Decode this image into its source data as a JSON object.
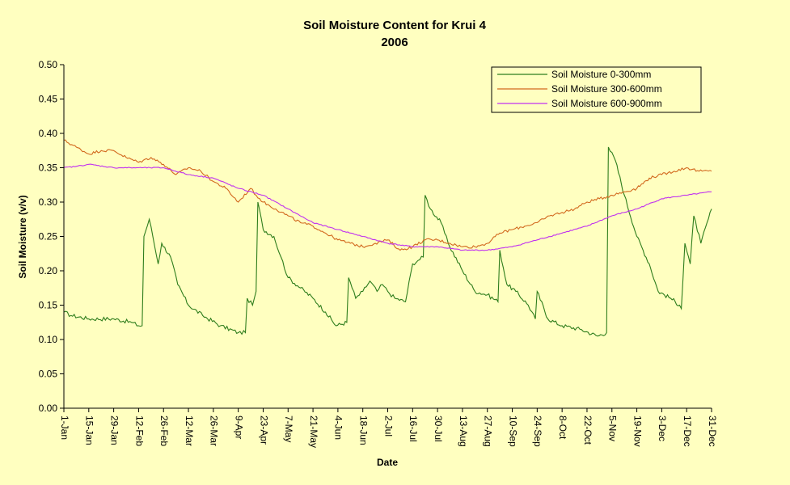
{
  "chart_data": {
    "type": "line",
    "title": "Soil Moisture Content for Krui 4",
    "subtitle": "2006",
    "xlabel": "Date",
    "ylabel": "Soil Moisture (v/v)",
    "ylim": [
      0,
      0.5
    ],
    "yticks": [
      "0.00",
      "0.05",
      "0.10",
      "0.15",
      "0.20",
      "0.25",
      "0.30",
      "0.35",
      "0.40",
      "0.45",
      "0.50"
    ],
    "xlim": [
      "2006-01-01",
      "2006-12-31"
    ],
    "xticks": [
      "1-Jan",
      "15-Jan",
      "29-Jan",
      "12-Feb",
      "26-Feb",
      "12-Mar",
      "26-Mar",
      "9-Apr",
      "23-Apr",
      "7-May",
      "21-May",
      "4-Jun",
      "18-Jun",
      "2-Jul",
      "16-Jul",
      "30-Jul",
      "13-Aug",
      "27-Aug",
      "10-Sep",
      "24-Sep",
      "8-Oct",
      "22-Oct",
      "5-Nov",
      "19-Nov",
      "3-Dec",
      "17-Dec",
      "31-Dec"
    ],
    "grid": false,
    "legend_position": "top-right",
    "plot_background": "#FFFFC0",
    "page_background": "#FFFFC0",
    "series": [
      {
        "name": "Soil Moisture 0-300mm",
        "color": "#2E7D1C",
        "x": [
          "2006-01-01",
          "2006-01-05",
          "2006-01-15",
          "2006-01-29",
          "2006-02-08",
          "2006-02-12",
          "2006-02-14",
          "2006-02-15",
          "2006-02-18",
          "2006-02-20",
          "2006-02-23",
          "2006-02-25",
          "2006-03-02",
          "2006-03-06",
          "2006-03-12",
          "2006-03-20",
          "2006-03-30",
          "2006-04-09",
          "2006-04-13",
          "2006-04-14",
          "2006-04-17",
          "2006-04-19",
          "2006-04-20",
          "2006-04-23",
          "2006-04-29",
          "2006-05-03",
          "2006-05-07",
          "2006-05-14",
          "2006-05-21",
          "2006-05-28",
          "2006-06-03",
          "2006-06-09",
          "2006-06-10",
          "2006-06-14",
          "2006-06-18",
          "2006-06-22",
          "2006-06-26",
          "2006-06-29",
          "2006-07-02",
          "2006-07-06",
          "2006-07-12",
          "2006-07-16",
          "2006-07-19",
          "2006-07-22",
          "2006-07-23",
          "2006-07-26",
          "2006-08-01",
          "2006-08-05",
          "2006-08-13",
          "2006-08-20",
          "2006-08-27",
          "2006-09-02",
          "2006-09-03",
          "2006-09-07",
          "2006-09-12",
          "2006-09-19",
          "2006-09-23",
          "2006-09-24",
          "2006-09-30",
          "2006-10-08",
          "2006-10-18",
          "2006-10-28",
          "2006-11-02",
          "2006-11-03",
          "2006-11-07",
          "2006-11-12",
          "2006-11-19",
          "2006-11-26",
          "2006-12-01",
          "2006-12-08",
          "2006-12-13",
          "2006-12-14",
          "2006-12-16",
          "2006-12-19",
          "2006-12-21",
          "2006-12-25",
          "2006-12-31"
        ],
        "values": [
          0.14,
          0.135,
          0.13,
          0.13,
          0.125,
          0.12,
          0.12,
          0.25,
          0.275,
          0.25,
          0.21,
          0.24,
          0.22,
          0.18,
          0.15,
          0.135,
          0.12,
          0.11,
          0.11,
          0.16,
          0.15,
          0.17,
          0.3,
          0.26,
          0.25,
          0.22,
          0.19,
          0.175,
          0.16,
          0.14,
          0.12,
          0.125,
          0.19,
          0.16,
          0.17,
          0.185,
          0.17,
          0.18,
          0.17,
          0.16,
          0.155,
          0.21,
          0.215,
          0.22,
          0.31,
          0.29,
          0.27,
          0.24,
          0.2,
          0.17,
          0.165,
          0.155,
          0.23,
          0.18,
          0.17,
          0.15,
          0.13,
          0.17,
          0.13,
          0.12,
          0.115,
          0.105,
          0.11,
          0.38,
          0.36,
          0.31,
          0.25,
          0.21,
          0.17,
          0.16,
          0.15,
          0.145,
          0.24,
          0.21,
          0.28,
          0.24,
          0.29
        ]
      },
      {
        "name": "Soil Moisture 300-600mm",
        "color": "#D2691E",
        "x": [
          "2006-01-01",
          "2006-01-08",
          "2006-01-15",
          "2006-01-22",
          "2006-01-29",
          "2006-02-05",
          "2006-02-12",
          "2006-02-19",
          "2006-02-26",
          "2006-03-05",
          "2006-03-12",
          "2006-03-19",
          "2006-03-26",
          "2006-04-02",
          "2006-04-09",
          "2006-04-16",
          "2006-04-19",
          "2006-04-23",
          "2006-04-30",
          "2006-05-07",
          "2006-05-14",
          "2006-05-21",
          "2006-05-28",
          "2006-06-04",
          "2006-06-11",
          "2006-06-18",
          "2006-06-25",
          "2006-07-02",
          "2006-07-09",
          "2006-07-16",
          "2006-07-23",
          "2006-07-30",
          "2006-08-06",
          "2006-08-13",
          "2006-08-20",
          "2006-08-27",
          "2006-09-03",
          "2006-09-10",
          "2006-09-17",
          "2006-09-24",
          "2006-10-01",
          "2006-10-08",
          "2006-10-15",
          "2006-10-22",
          "2006-10-29",
          "2006-11-05",
          "2006-11-12",
          "2006-11-19",
          "2006-11-26",
          "2006-12-03",
          "2006-12-10",
          "2006-12-17",
          "2006-12-24",
          "2006-12-31"
        ],
        "values": [
          0.39,
          0.38,
          0.37,
          0.375,
          0.375,
          0.365,
          0.358,
          0.365,
          0.355,
          0.34,
          0.35,
          0.345,
          0.33,
          0.32,
          0.3,
          0.32,
          0.31,
          0.3,
          0.29,
          0.28,
          0.27,
          0.265,
          0.255,
          0.245,
          0.24,
          0.235,
          0.24,
          0.245,
          0.23,
          0.235,
          0.245,
          0.245,
          0.24,
          0.235,
          0.235,
          0.24,
          0.255,
          0.26,
          0.265,
          0.27,
          0.28,
          0.285,
          0.29,
          0.3,
          0.305,
          0.31,
          0.315,
          0.32,
          0.335,
          0.34,
          0.345,
          0.35,
          0.345,
          0.345
        ]
      },
      {
        "name": "Soil Moisture 600-900mm",
        "color": "#C030F0",
        "x": [
          "2006-01-01",
          "2006-01-08",
          "2006-01-15",
          "2006-01-29",
          "2006-02-12",
          "2006-02-26",
          "2006-03-12",
          "2006-03-26",
          "2006-04-09",
          "2006-04-23",
          "2006-05-07",
          "2006-05-21",
          "2006-06-04",
          "2006-06-18",
          "2006-07-02",
          "2006-07-16",
          "2006-07-30",
          "2006-08-13",
          "2006-08-27",
          "2006-09-10",
          "2006-09-24",
          "2006-10-08",
          "2006-10-22",
          "2006-11-05",
          "2006-11-19",
          "2006-12-03",
          "2006-12-17",
          "2006-12-31"
        ],
        "values": [
          0.35,
          0.352,
          0.355,
          0.35,
          0.35,
          0.35,
          0.34,
          0.335,
          0.32,
          0.31,
          0.29,
          0.27,
          0.26,
          0.25,
          0.24,
          0.235,
          0.235,
          0.23,
          0.23,
          0.235,
          0.245,
          0.255,
          0.265,
          0.28,
          0.29,
          0.305,
          0.31,
          0.315
        ]
      }
    ]
  }
}
